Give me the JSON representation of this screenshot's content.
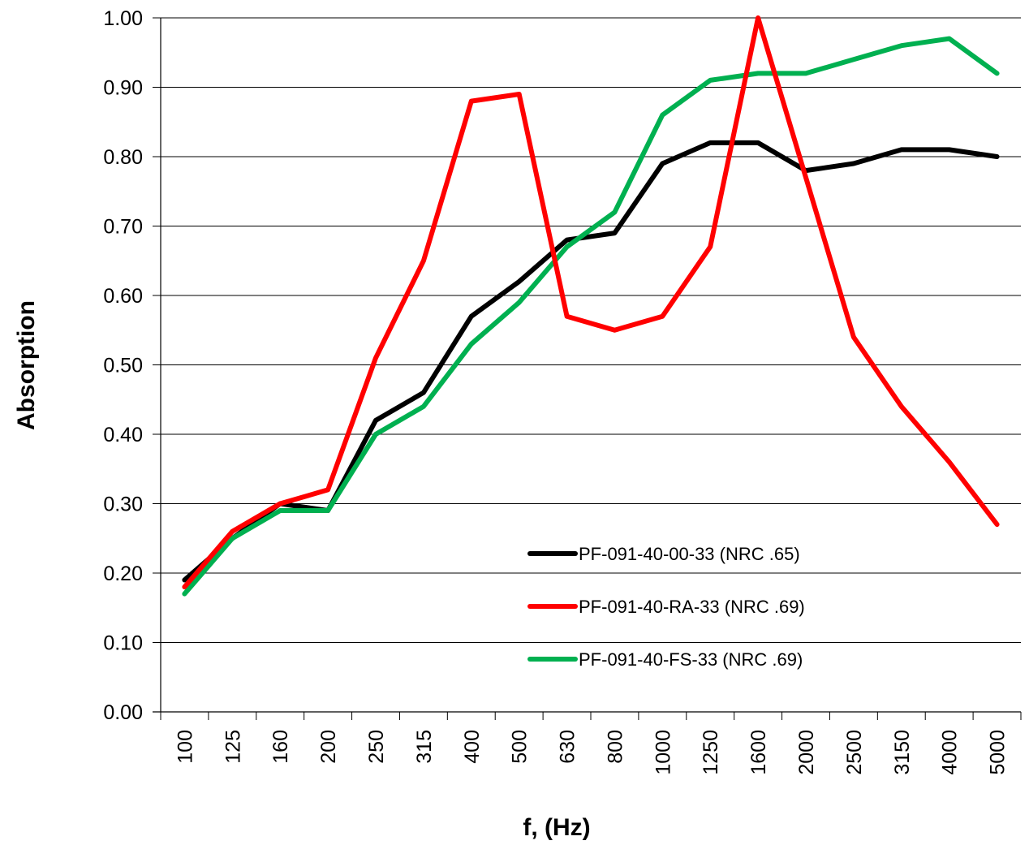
{
  "chart_data": {
    "type": "line",
    "xlabel": "f, (Hz)",
    "ylabel": "Absorption",
    "ylim": [
      0,
      1
    ],
    "y_ticks": [
      "0.00",
      "0.10",
      "0.20",
      "0.30",
      "0.40",
      "0.50",
      "0.60",
      "0.70",
      "0.80",
      "0.90",
      "1.00"
    ],
    "categories": [
      "100",
      "125",
      "160",
      "200",
      "250",
      "315",
      "400",
      "500",
      "630",
      "800",
      "1000",
      "1250",
      "1600",
      "2000",
      "2500",
      "3150",
      "4000",
      "5000"
    ],
    "grid": "horizontal",
    "legend_position": "bottom-right",
    "series": [
      {
        "name": "PF-091-40-00-33 (NRC .65)",
        "color": "#000000",
        "values": [
          0.19,
          0.25,
          0.3,
          0.29,
          0.42,
          0.46,
          0.57,
          0.62,
          0.68,
          0.69,
          0.79,
          0.82,
          0.82,
          0.78,
          0.79,
          0.81,
          0.81,
          0.8
        ]
      },
      {
        "name": "PF-091-40-RA-33 (NRC .69)",
        "color": "#ff0000",
        "values": [
          0.18,
          0.26,
          0.3,
          0.32,
          0.51,
          0.65,
          0.88,
          0.89,
          0.57,
          0.55,
          0.57,
          0.67,
          1.0,
          0.77,
          0.54,
          0.44,
          0.36,
          0.27
        ]
      },
      {
        "name": "PF-091-40-FS-33 (NRC .69)",
        "color": "#00b050",
        "values": [
          0.17,
          0.25,
          0.29,
          0.29,
          0.4,
          0.44,
          0.53,
          0.59,
          0.67,
          0.72,
          0.86,
          0.91,
          0.92,
          0.92,
          0.94,
          0.96,
          0.97,
          0.92
        ]
      }
    ]
  }
}
